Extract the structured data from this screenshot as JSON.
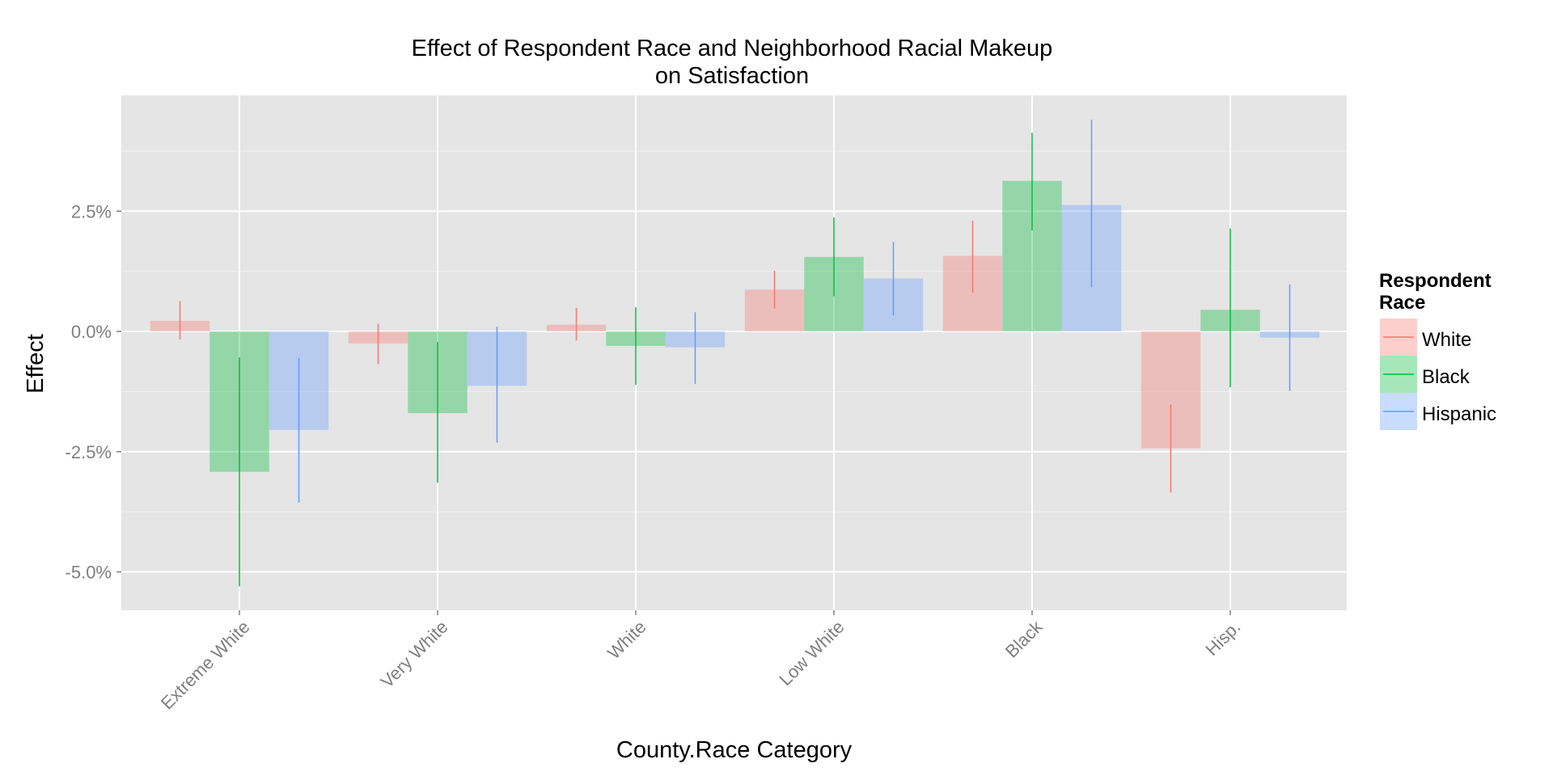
{
  "chart_data": {
    "type": "bar",
    "title": [
      "Effect of Respondent Race and Neighborhood Racial Makeup",
      "on Satisfaction"
    ],
    "xlabel": "County.Race Category",
    "ylabel": "Effect",
    "ylim": [
      -5.8,
      4.9
    ],
    "y_ticks": [
      2.5,
      0.0,
      -2.5,
      -5.0
    ],
    "y_tick_labels": [
      "2.5%",
      "0.0%",
      "-2.5%",
      "-5.0%"
    ],
    "categories": [
      "Extreme White",
      "Very White",
      "White",
      "Low White",
      "Black",
      "Hisp."
    ],
    "legend": {
      "title": [
        "Respondent",
        "Race"
      ],
      "position": "right"
    },
    "series": [
      {
        "name": "White",
        "color": "#F8766D",
        "values": [
          0.22,
          -0.25,
          0.14,
          0.87,
          1.57,
          -2.43
        ],
        "ci_low": [
          -0.17,
          -0.68,
          -0.19,
          0.47,
          0.8,
          -3.35
        ],
        "ci_high": [
          0.63,
          0.16,
          0.49,
          1.26,
          2.3,
          -1.52
        ]
      },
      {
        "name": "Black",
        "color": "#00BA38",
        "values": [
          -2.92,
          -1.7,
          -0.3,
          1.55,
          3.13,
          0.45
        ],
        "ci_low": [
          -5.3,
          -3.15,
          -1.11,
          0.73,
          2.1,
          -1.16
        ],
        "ci_high": [
          -0.54,
          -0.22,
          0.5,
          2.37,
          4.13,
          2.14
        ]
      },
      {
        "name": "Hispanic",
        "color": "#619CFF",
        "values": [
          -2.05,
          -1.13,
          -0.33,
          1.1,
          2.63,
          -0.13
        ],
        "ci_low": [
          -3.56,
          -2.31,
          -1.09,
          0.33,
          0.92,
          -1.24
        ],
        "ci_high": [
          -0.55,
          0.1,
          0.4,
          1.86,
          4.4,
          0.98
        ]
      }
    ],
    "grid": true,
    "panel_background": "#E5E5E5",
    "grid_color": "#FFFFFF"
  }
}
